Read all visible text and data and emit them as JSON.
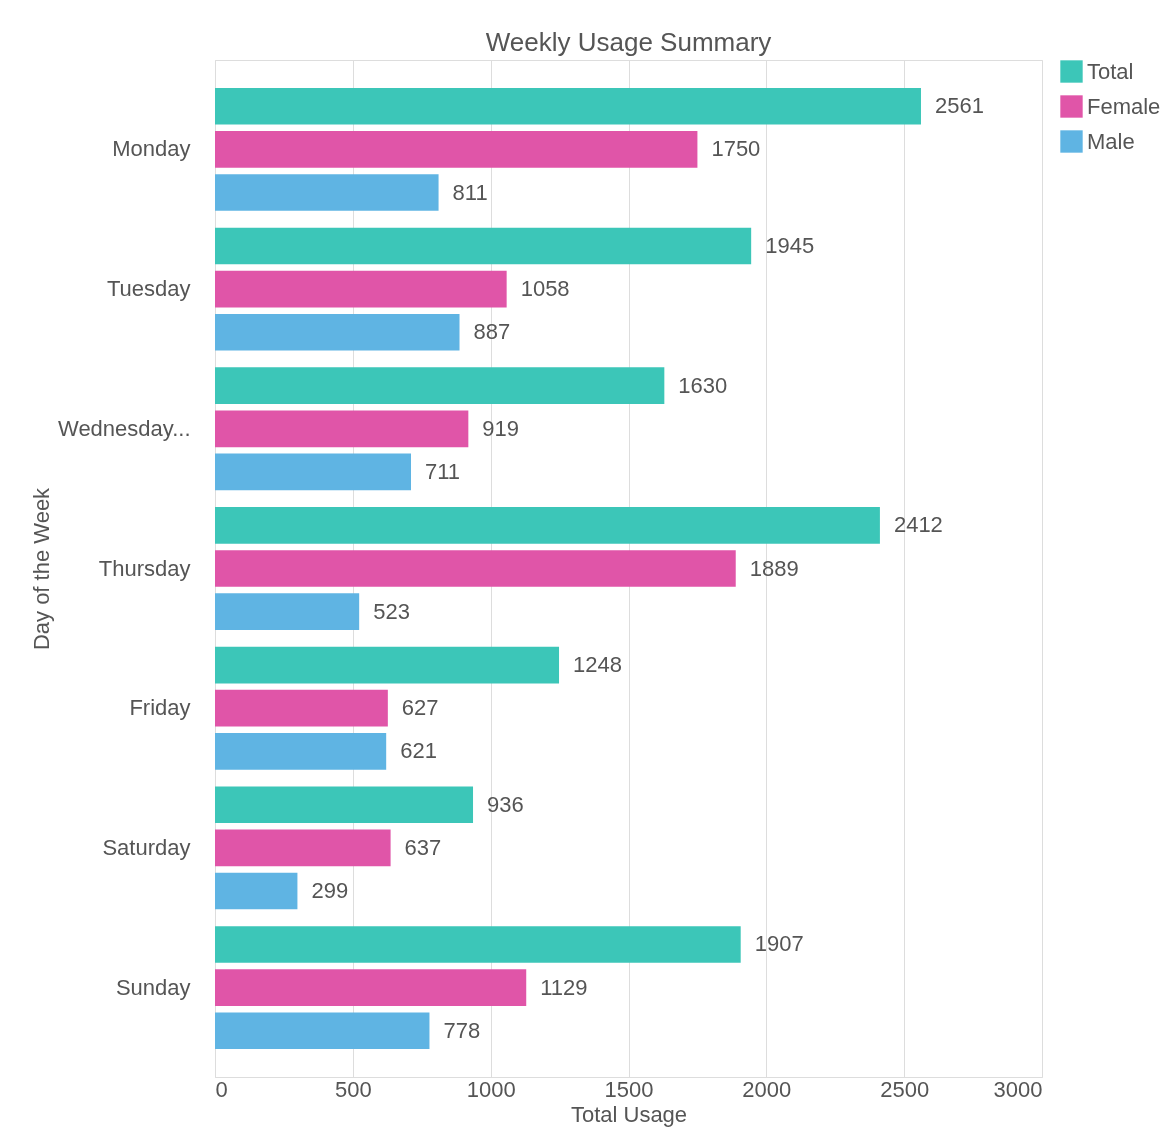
{
  "chart_data": {
    "type": "bar",
    "orientation": "horizontal",
    "title": "Weekly Usage Summary",
    "xlabel": "Total Usage",
    "ylabel": "Day of the Week",
    "categories": [
      "Monday",
      "Tuesday",
      "Wednesday...",
      "Thursday",
      "Friday",
      "Saturday",
      "Sunday"
    ],
    "series": [
      {
        "name": "Total",
        "color": "#3cc6b8",
        "values": [
          2561,
          1945,
          1630,
          2412,
          1248,
          936,
          1907
        ]
      },
      {
        "name": "Female",
        "color": "#e055a8",
        "values": [
          1750,
          1058,
          919,
          1889,
          627,
          637,
          1129
        ]
      },
      {
        "name": "Male",
        "color": "#5fb4e3",
        "values": [
          811,
          887,
          711,
          523,
          621,
          299,
          778
        ]
      }
    ],
    "xlim": [
      0,
      3000
    ],
    "xticks": [
      0,
      500,
      1000,
      1500,
      2000,
      2500,
      3000
    ],
    "grid": "x",
    "legend": "right",
    "data_labels": true
  }
}
